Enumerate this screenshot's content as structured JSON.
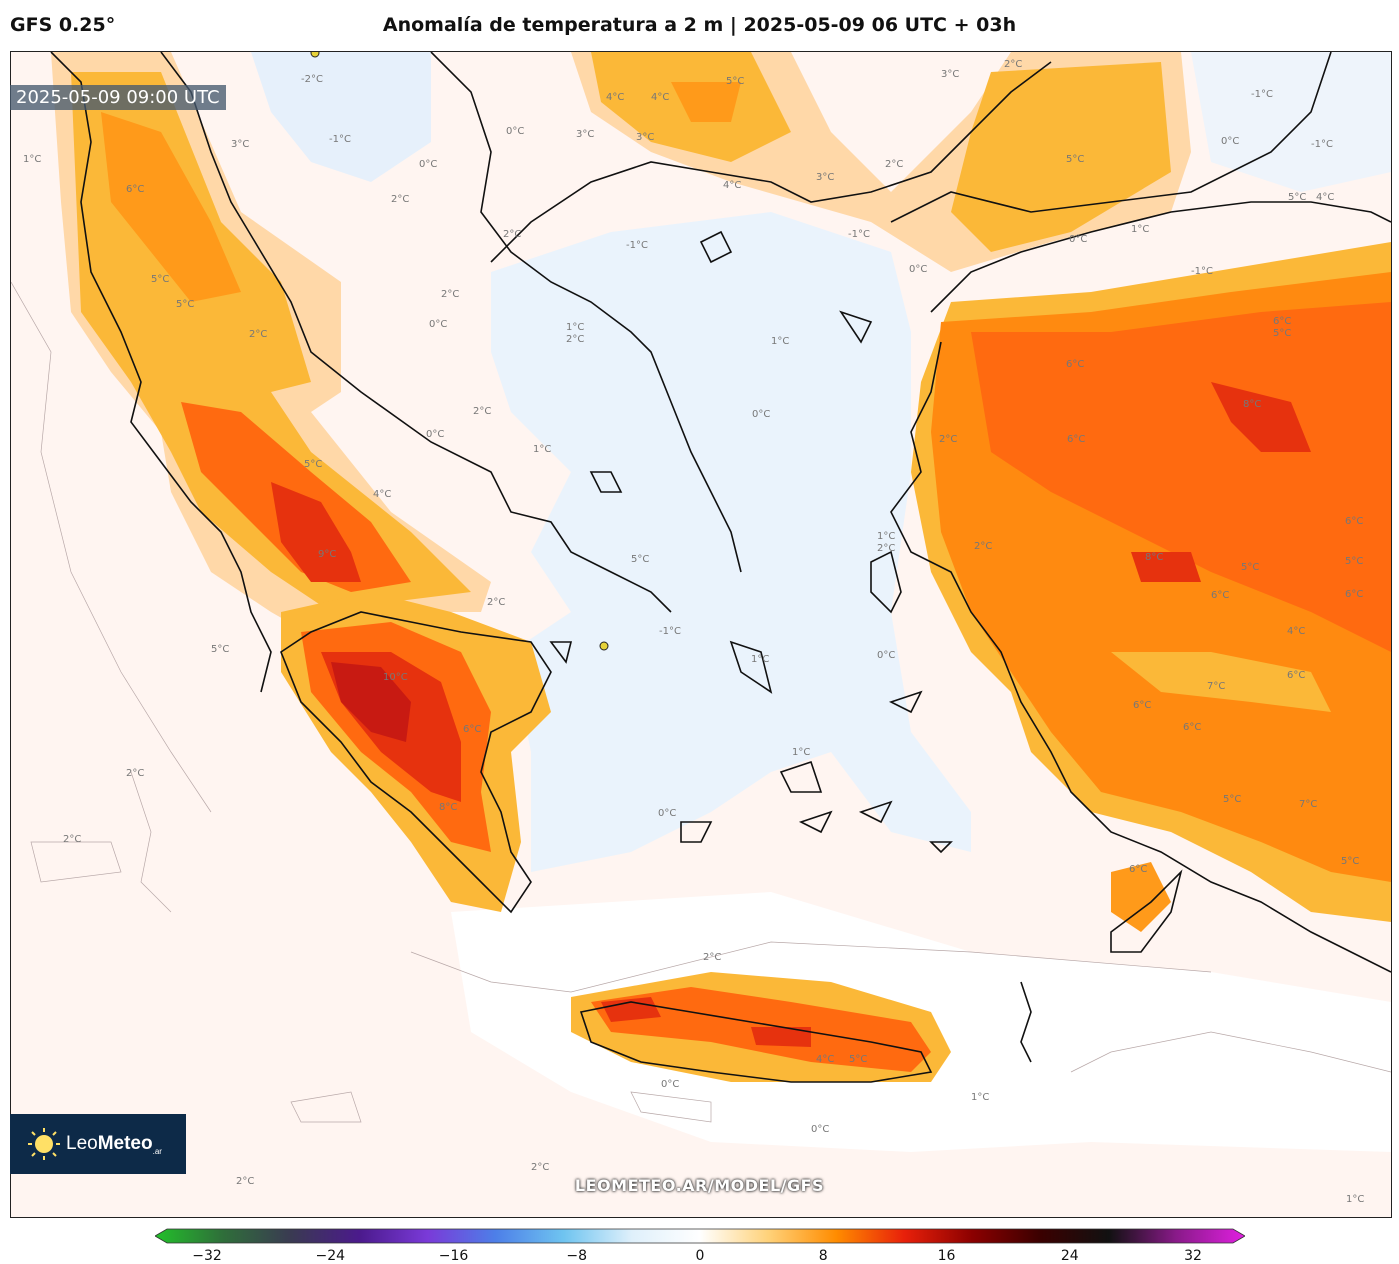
{
  "header": {
    "model": "GFS 0.25°",
    "title": "Anomalía de temperatura a 2 m | 2025-05-09 06 UTC + 03h"
  },
  "map": {
    "valid_time": "2025-05-09 09:00 UTC",
    "watermark": "LEOMETEO.AR/MODEL/GFS",
    "logo": {
      "brand_light": "Leo",
      "brand_bold": "Meteo",
      "suffix": ".ar"
    },
    "isotherm_labels": {
      "l1": "1°C",
      "l2": "2°C",
      "l3": "3°C",
      "l4": "4°C",
      "l5": "5°C",
      "l6": "6°C",
      "l7": "7°C",
      "l8": "8°C",
      "l9": "9°C",
      "l10": "10°C",
      "l0": "0°C",
      "lm1": "-1°C",
      "lm2": "-2°C"
    }
  },
  "colorbar": {
    "ticks": [
      "−32",
      "−24",
      "−16",
      "−8",
      "0",
      "8",
      "16",
      "24",
      "32"
    ],
    "min": -32,
    "max": 32,
    "colors": [
      "#22c02a",
      "#2f6e3a",
      "#3a3a52",
      "#4b1a8c",
      "#7a3ad8",
      "#4d7fe8",
      "#6fc4f0",
      "#dff0fb",
      "#ffffff",
      "#ffd27a",
      "#ff8c00",
      "#e8200a",
      "#8b0000",
      "#3a0000",
      "#111111",
      "#8a1a8a",
      "#e020e0"
    ]
  }
}
